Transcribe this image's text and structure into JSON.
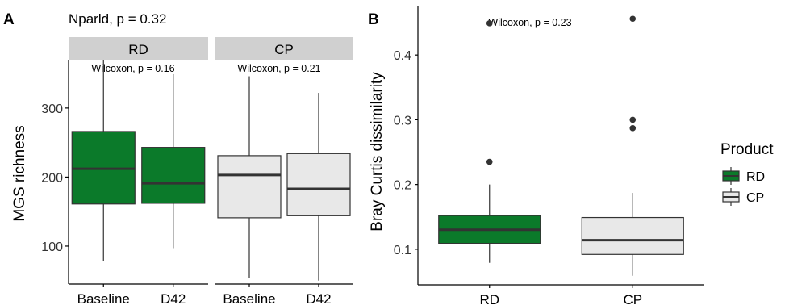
{
  "colors": {
    "rd_fill": "#0b7a2a",
    "cp_fill": "#e8e8e8",
    "strip": "#d0d0d0",
    "line": "#333333"
  },
  "chart_data": [
    {
      "type": "box",
      "panel_label": "A",
      "title": "Nparld, p = 0.32",
      "ylabel": "MGS richness",
      "yticks": [
        100,
        200,
        300
      ],
      "ylim": [
        45,
        370
      ],
      "facets": [
        {
          "label": "RD",
          "annotation": "Wilcoxon, p = 0.16",
          "fill": "#0b7a2a",
          "boxes": [
            {
              "category": "Baseline",
              "min": 78,
              "q1": 161,
              "median": 212,
              "q3": 266,
              "max": 370
            },
            {
              "category": "D42",
              "min": 97,
              "q1": 162,
              "median": 191,
              "q3": 243,
              "max": 349
            }
          ]
        },
        {
          "label": "CP",
          "annotation": "Wilcoxon, p = 0.21",
          "fill": "#e8e8e8",
          "boxes": [
            {
              "category": "Baseline",
              "min": 54,
              "q1": 141,
              "median": 203,
              "q3": 231,
              "max": 346
            },
            {
              "category": "D42",
              "min": 50,
              "q1": 144,
              "median": 183,
              "q3": 234,
              "max": 322
            }
          ]
        }
      ]
    },
    {
      "type": "box",
      "panel_label": "B",
      "ylabel": "Bray Curtis dissimilarity",
      "annotation": "Wilcoxon, p = 0.23",
      "yticks": [
        0.1,
        0.2,
        0.3,
        0.4
      ],
      "ylim": [
        0.045,
        0.475
      ],
      "categories": [
        "RD",
        "CP"
      ],
      "boxes": [
        {
          "category": "RD",
          "fill": "#0b7a2a",
          "min": 0.079,
          "q1": 0.109,
          "median": 0.13,
          "q3": 0.152,
          "max": 0.2,
          "outliers": [
            0.235,
            0.449
          ]
        },
        {
          "category": "CP",
          "fill": "#e8e8e8",
          "min": 0.059,
          "q1": 0.092,
          "median": 0.114,
          "q3": 0.149,
          "max": 0.187,
          "outliers": [
            0.287,
            0.3,
            0.456
          ]
        }
      ],
      "legend": {
        "title": "Product",
        "position": "right",
        "items": [
          {
            "label": "RD",
            "fill": "#0b7a2a"
          },
          {
            "label": "CP",
            "fill": "#e8e8e8"
          }
        ]
      }
    }
  ]
}
